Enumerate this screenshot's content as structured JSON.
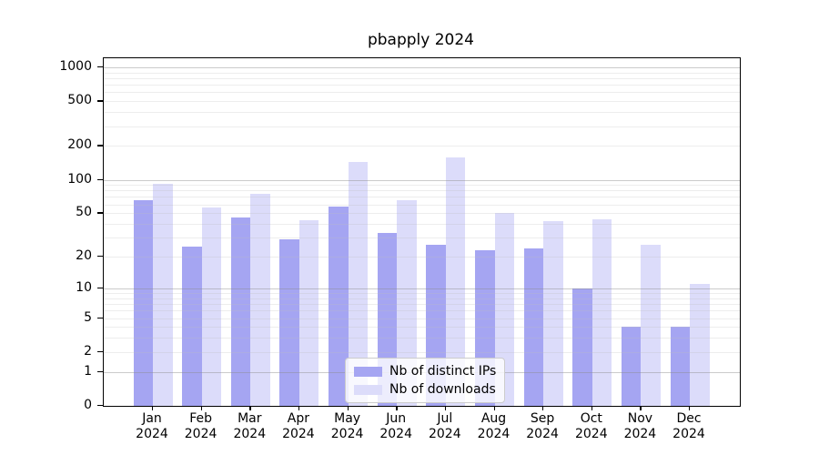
{
  "title": "pbapply 2024",
  "legend": {
    "items": [
      {
        "label": "Nb of distinct IPs"
      },
      {
        "label": "Nb of downloads"
      }
    ]
  },
  "chart_data": {
    "type": "bar",
    "title": "pbapply 2024",
    "xlabel": "",
    "ylabel": "",
    "yscale": "log1p",
    "grid": true,
    "legend_position": "inside-bottom-center",
    "ylim": [
      0,
      1200
    ],
    "y_ticks": [
      0,
      1,
      2,
      5,
      10,
      20,
      50,
      100,
      200,
      500,
      1000
    ],
    "categories": [
      "Jan\n2024",
      "Feb\n2024",
      "Mar\n2024",
      "Apr\n2024",
      "May\n2024",
      "Jun\n2024",
      "Jul\n2024",
      "Aug\n2024",
      "Sep\n2024",
      "Oct\n2024",
      "Nov\n2024",
      "Dec\n2024"
    ],
    "series": [
      {
        "name": "Nb of distinct IPs",
        "color": "#a5a5f2",
        "values": [
          65,
          25,
          46,
          29,
          57,
          33,
          26,
          23,
          24,
          10,
          4,
          4
        ]
      },
      {
        "name": "Nb of downloads",
        "color": "#dcdcfa",
        "values": [
          92,
          56,
          75,
          43,
          145,
          66,
          157,
          50,
          42,
          44,
          26,
          11
        ]
      }
    ],
    "colors": {
      "major_grid": "#c9c9c9",
      "minor_grid": "#ebebeb",
      "axis": "#000000",
      "legend_border": "#cccccc"
    }
  }
}
